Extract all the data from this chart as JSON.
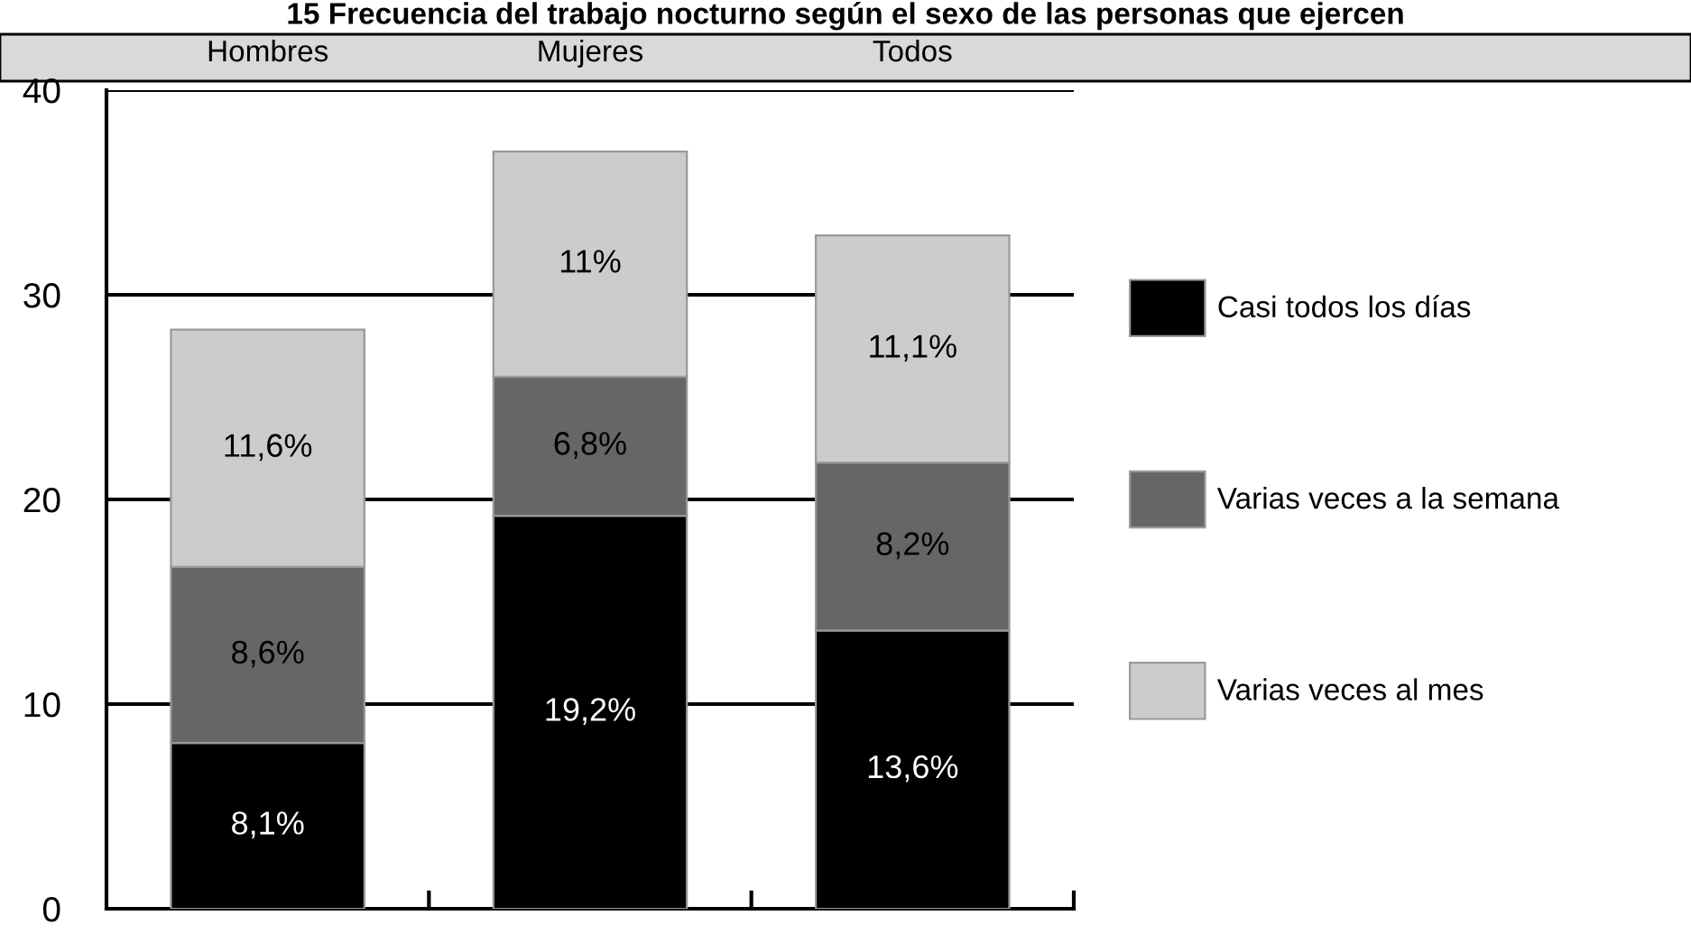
{
  "chart_data": {
    "type": "bar",
    "title": "15 Frecuencia del trabajo nocturno según el sexo de las personas que ejercen",
    "categories": [
      "Hombres",
      "Mujeres",
      "Todos"
    ],
    "stacked": true,
    "series": [
      {
        "name": "Casi todos los días",
        "color": "#000000",
        "values": [
          8.1,
          19.2,
          13.6
        ],
        "value_labels": [
          "8,1%",
          "19,2%",
          "13,6%"
        ]
      },
      {
        "name": "Varias veces a la semana",
        "color": "#666666",
        "values": [
          8.6,
          6.8,
          8.2
        ],
        "value_labels": [
          "8,6%",
          "6,8%",
          "8,2%"
        ]
      },
      {
        "name": "Varias veces al mes",
        "color": "#cccccc",
        "values": [
          11.6,
          11,
          11.1
        ],
        "value_labels": [
          "11,6%",
          "11%",
          "11,1%"
        ]
      }
    ],
    "ylim": [
      0,
      40
    ],
    "yticks": [
      0,
      10,
      20,
      30,
      40
    ],
    "grid": "y",
    "legend": "right"
  }
}
